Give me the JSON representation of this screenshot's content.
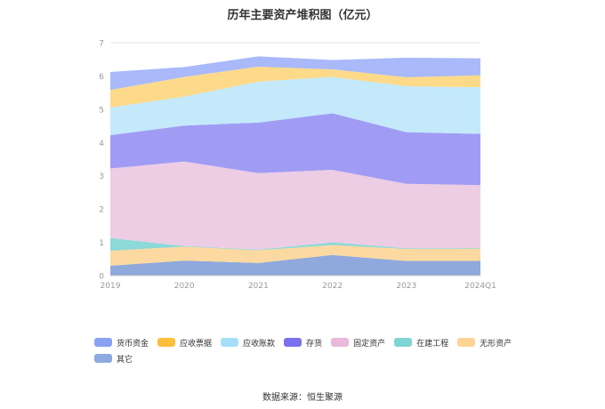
{
  "chart_data": {
    "type": "area",
    "stacked": true,
    "title": "历年主要资产堆积图（亿元）",
    "categories": [
      "2019",
      "2020",
      "2021",
      "2022",
      "2023",
      "2024Q1"
    ],
    "ylim": [
      0,
      7
    ],
    "yticks": [
      0,
      1,
      2,
      3,
      4,
      5,
      6,
      7
    ],
    "grid": true,
    "legend_position": "bottom",
    "series": [
      {
        "name": "其它",
        "color": "#8fa9dc",
        "values": [
          0.3,
          0.45,
          0.38,
          0.62,
          0.44,
          0.44
        ]
      },
      {
        "name": "无形资产",
        "color": "#fcd9a0",
        "values": [
          0.45,
          0.42,
          0.38,
          0.3,
          0.36,
          0.37
        ]
      },
      {
        "name": "在建工程",
        "color": "#8dd8d8",
        "values": [
          0.38,
          0.02,
          0.02,
          0.08,
          0.02,
          0.02
        ]
      },
      {
        "name": "固定资产",
        "color": "#eccde4",
        "values": [
          2.09,
          2.54,
          2.3,
          2.18,
          1.94,
          1.89
        ]
      },
      {
        "name": "存货",
        "color": "#a09cf4",
        "values": [
          1.0,
          1.08,
          1.52,
          1.7,
          1.55,
          1.54
        ]
      },
      {
        "name": "应收账款",
        "color": "#c3e9fb",
        "values": [
          0.83,
          0.87,
          1.23,
          1.09,
          1.38,
          1.4
        ]
      },
      {
        "name": "应收票据",
        "color": "#fdd98a",
        "values": [
          0.53,
          0.59,
          0.45,
          0.23,
          0.27,
          0.36
        ]
      },
      {
        "name": "货币资金",
        "color": "#a9b9f9",
        "values": [
          0.54,
          0.3,
          0.31,
          0.28,
          0.59,
          0.51
        ]
      }
    ]
  },
  "legend": [
    {
      "name": "货币资金",
      "color": "#8aa1f3"
    },
    {
      "name": "应收票据",
      "color": "#fbbf3c"
    },
    {
      "name": "应收账款",
      "color": "#a6e0f8"
    },
    {
      "name": "存货",
      "color": "#7b70ee"
    },
    {
      "name": "固定资产",
      "color": "#e9b8da"
    },
    {
      "name": "在建工程",
      "color": "#7fd4d4"
    },
    {
      "name": "无形资产",
      "color": "#fdd496"
    },
    {
      "name": "其它",
      "color": "#8caae0"
    }
  ],
  "source": "数据来源：恒生聚源"
}
